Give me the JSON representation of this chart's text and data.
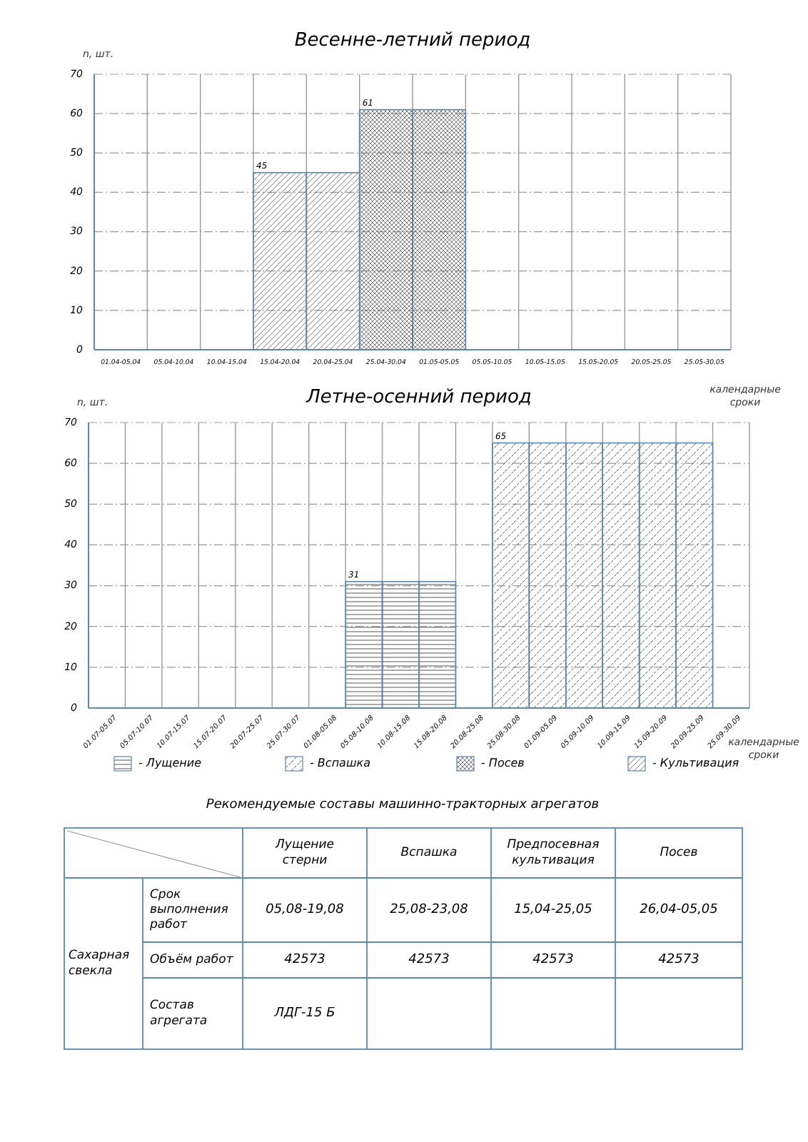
{
  "chart_data": [
    {
      "type": "bar",
      "title": "Весенне-летний период",
      "ylabel": "n, шт.",
      "xlabel": "календарные сроки",
      "categories": [
        "01.04-05.04",
        "05.04-10.04",
        "10.04-15.04",
        "15.04-20.04",
        "20.04-25.04",
        "25.04-30.04",
        "01.05-05.05",
        "05.05-10.05",
        "10.05-15.05",
        "15.05-20.05",
        "20.05-25.05",
        "25.05-30.05"
      ],
      "ylim": [
        0,
        70
      ],
      "yticks": [
        0,
        10,
        20,
        30,
        40,
        50,
        60,
        70
      ],
      "grid": true,
      "legend": "bottom",
      "series": [
        {
          "name": "- Посев",
          "color": "#5b86b8",
          "values": [
            null,
            null,
            null,
            null,
            null,
            61,
            61,
            null,
            null,
            null,
            null,
            null
          ],
          "value_labels": [
            null,
            null,
            null,
            null,
            null,
            "61",
            null,
            null,
            null,
            null,
            null,
            null
          ]
        },
        {
          "name": "- Культивация",
          "color": "#5b86b8",
          "values": [
            null,
            null,
            null,
            45,
            45,
            null,
            null,
            null,
            null,
            null,
            null,
            null
          ],
          "value_labels": [
            null,
            null,
            null,
            "45",
            null,
            null,
            null,
            null,
            null,
            null,
            null,
            null
          ]
        }
      ]
    },
    {
      "type": "bar",
      "title": "Летне-осенний период",
      "ylabel": "n, шт.",
      "xlabel": "календарные сроки",
      "categories": [
        "01.07-05.07",
        "05.07-10.07",
        "10.07-15.07",
        "15.07-20.07",
        "20.07-25.07",
        "25.07-30.07",
        "01.08-05.08",
        "05.08-10.08",
        "10.08-15.08",
        "15.08-20.08",
        "20.08-25.08",
        "25.08-30.08",
        "01.09-05.09",
        "05.09-10.09",
        "10.09-15.09",
        "15.09-20.09",
        "20.09-25.09",
        "25.09-30.09"
      ],
      "ylim": [
        0,
        70
      ],
      "yticks": [
        0,
        10,
        20,
        30,
        40,
        50,
        60,
        70
      ],
      "grid": true,
      "legend": "bottom",
      "series": [
        {
          "name": "- Лущение",
          "color": "#5b86b8",
          "values": [
            null,
            null,
            null,
            null,
            null,
            null,
            null,
            31,
            31,
            31,
            null,
            null,
            null,
            null,
            null,
            null,
            null,
            null
          ],
          "value_labels": [
            null,
            null,
            null,
            null,
            null,
            null,
            null,
            "31",
            null,
            null,
            null,
            null,
            null,
            null,
            null,
            null,
            null,
            null
          ]
        },
        {
          "name": "- Вспашка",
          "color": "#5b86b8",
          "values": [
            null,
            null,
            null,
            null,
            null,
            null,
            null,
            null,
            null,
            null,
            null,
            65,
            65,
            65,
            65,
            65,
            65,
            null
          ],
          "value_labels": [
            null,
            null,
            null,
            null,
            null,
            null,
            null,
            null,
            null,
            null,
            null,
            "65",
            null,
            null,
            null,
            null,
            null,
            null
          ]
        }
      ]
    },
    {
      "type": "other",
      "title": "Рекомендуемые составы машинно-тракторных агрегатов",
      "categories": [
        "Лущение стерни",
        "Вспашка",
        "Предпосевная культивация",
        "Посев"
      ],
      "y_categories": [
        "Срок выполнения работ",
        "Объём работ",
        "Состав агрегата"
      ],
      "cell_labels": [
        [
          "05,08-19,08",
          "25,08-23,08",
          "15,04-25,05",
          "26,04-05,05"
        ],
        [
          "42573",
          "42573",
          "42573",
          "42573"
        ],
        [
          "ЛДГ-15 Б",
          null,
          null,
          null
        ]
      ],
      "annotations": [
        "Сахарная свекла"
      ]
    }
  ]
}
